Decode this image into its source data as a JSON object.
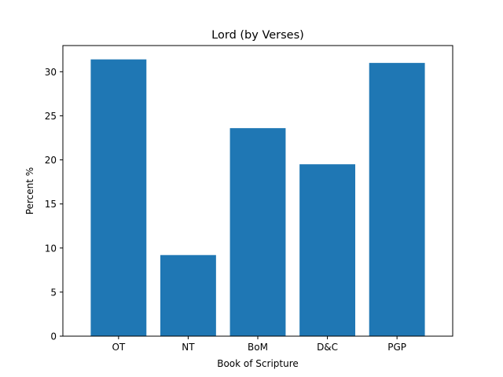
{
  "chart_data": {
    "type": "bar",
    "title": "Lord (by Verses)",
    "xlabel": "Book of Scripture",
    "ylabel": "Percent %",
    "categories": [
      "OT",
      "NT",
      "BoM",
      "D&C",
      "PGP"
    ],
    "values": [
      31.4,
      9.2,
      23.6,
      19.5,
      31.0
    ],
    "ylim": [
      0,
      32.97
    ],
    "yticks": [
      0,
      5,
      10,
      15,
      20,
      25,
      30
    ],
    "bar_color": "#1f77b4",
    "grid": false,
    "legend": "none"
  }
}
